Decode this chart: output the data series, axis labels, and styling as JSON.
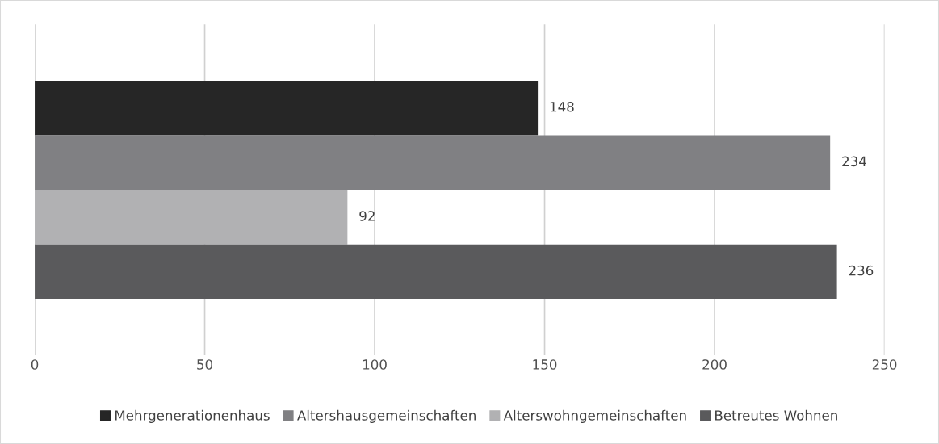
{
  "chart_data": {
    "type": "bar",
    "orientation": "horizontal",
    "categories": [
      null
    ],
    "series": [
      {
        "name": "Mehrgenerationenhaus",
        "color": "#262626",
        "values": [
          148
        ]
      },
      {
        "name": "Altershausgemeinschaften",
        "color": "#808083",
        "values": [
          234
        ]
      },
      {
        "name": "Alterswohngemeinschaften",
        "color": "#b1b1b3",
        "values": [
          92
        ]
      },
      {
        "name": "Betreutes Wohnen",
        "color": "#5a5a5c",
        "values": [
          236
        ]
      }
    ],
    "xlim": [
      0,
      250
    ],
    "xticks": [
      0,
      50,
      100,
      150,
      200,
      250
    ],
    "grid": "x",
    "legend": "bottom",
    "data_labels": true
  }
}
